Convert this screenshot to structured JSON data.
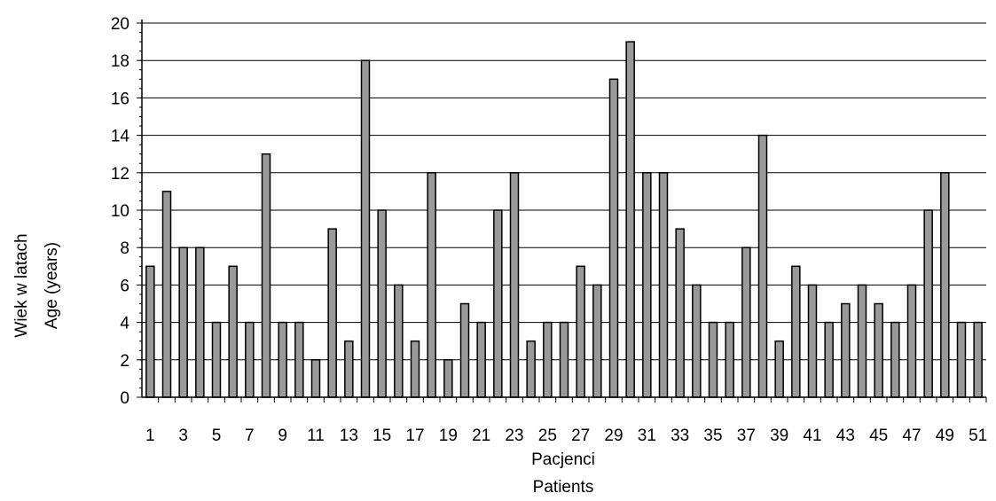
{
  "chart_data": {
    "type": "bar",
    "xlabel_line1": "Pacjenci",
    "xlabel_line2": "Patients",
    "ylabel_line1": "Wiek w latach",
    "ylabel_line2": "Age (years)",
    "ylim": [
      0,
      20
    ],
    "ytick_step": 2,
    "grid": true,
    "legend": "none",
    "bar_color": "#999999",
    "categories": [
      1,
      2,
      3,
      4,
      5,
      6,
      7,
      8,
      9,
      10,
      11,
      12,
      13,
      14,
      15,
      16,
      17,
      18,
      19,
      20,
      21,
      22,
      23,
      24,
      25,
      26,
      27,
      28,
      29,
      30,
      31,
      32,
      33,
      34,
      35,
      36,
      37,
      38,
      39,
      40,
      41,
      42,
      43,
      44,
      45,
      46,
      47,
      48,
      49,
      50,
      51
    ],
    "xtick_labels": [
      "1",
      "3",
      "5",
      "7",
      "9",
      "11",
      "13",
      "15",
      "17",
      "19",
      "21",
      "23",
      "25",
      "27",
      "29",
      "31",
      "33",
      "35",
      "37",
      "39",
      "41",
      "43",
      "45",
      "47",
      "49",
      "51"
    ],
    "values": [
      7,
      11,
      8,
      8,
      4,
      7,
      4,
      13,
      4,
      4,
      2,
      9,
      3,
      18,
      10,
      6,
      3,
      12,
      2,
      5,
      4,
      10,
      12,
      3,
      4,
      4,
      7,
      6,
      17,
      19,
      12,
      12,
      9,
      6,
      4,
      4,
      8,
      14,
      3,
      7,
      6,
      4,
      5,
      6,
      5,
      4,
      6,
      10,
      12,
      4,
      4
    ]
  }
}
